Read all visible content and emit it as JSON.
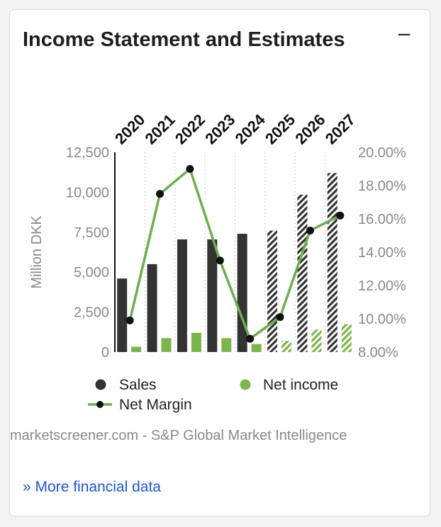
{
  "widget": {
    "title": "Income Statement and Estimates",
    "collapse_icon": "minus-icon",
    "source": "marketscreener.com - S&P Global Market Intelligence",
    "more_link_prefix": "»",
    "more_link": "More financial data"
  },
  "chart_data": {
    "type": "bar",
    "categories": [
      "2020",
      "2021",
      "2022",
      "2023",
      "2024",
      "2025",
      "2026",
      "2027"
    ],
    "estimate_categories": [
      "2025",
      "2026",
      "2027"
    ],
    "ylabel": "Million DKK",
    "ylim": [
      0,
      12500
    ],
    "yticks": [
      "0",
      "2,500",
      "5,000",
      "7,500",
      "10,000",
      "12,500"
    ],
    "y2lim": [
      8,
      20
    ],
    "y2ticks": [
      "8.00%",
      "10.00%",
      "12.00%",
      "14.00%",
      "16.00%",
      "18.00%",
      "20.00%"
    ],
    "series": [
      {
        "name": "Sales",
        "type": "bar",
        "color": "#333333",
        "values": [
          4600,
          5500,
          7050,
          7050,
          7400,
          7600,
          9850,
          11200
        ]
      },
      {
        "name": "Net income",
        "type": "bar",
        "color": "#7ab648",
        "values": [
          330,
          870,
          1200,
          870,
          500,
          700,
          1400,
          1750
        ]
      },
      {
        "name": "Net Margin",
        "type": "line",
        "axis": "right",
        "color": "#6ab04c",
        "marker_color": "#111111",
        "values": [
          9.9,
          17.5,
          19.0,
          13.5,
          8.8,
          10.1,
          15.3,
          16.2
        ]
      }
    ],
    "legend": "bottom",
    "grid": "vertical-dotted"
  }
}
